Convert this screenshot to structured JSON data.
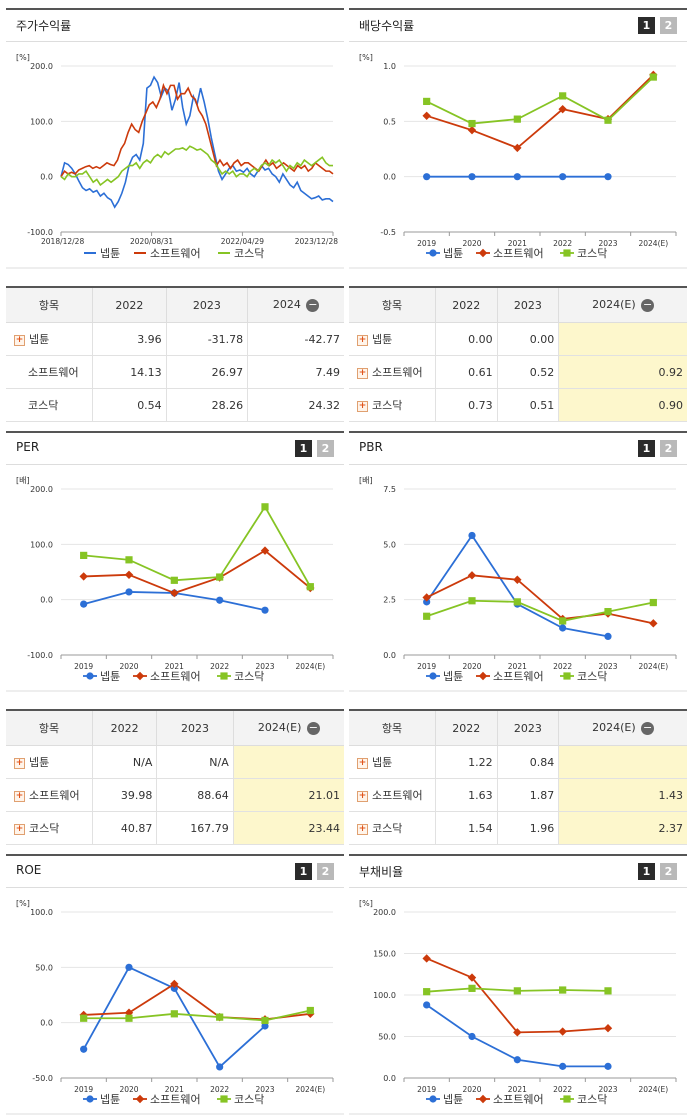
{
  "colors": {
    "nepton": "#2c6fd6",
    "software": "#cc3a0b",
    "kosdaq": "#86c424"
  },
  "panels": {
    "p1": {
      "title": "주가수익률"
    },
    "p2": {
      "title": "배당수익률",
      "pager": [
        "1",
        "2"
      ]
    },
    "p3": {
      "title": "PER",
      "pager": [
        "1",
        "2"
      ]
    },
    "p4": {
      "title": "PBR",
      "pager": [
        "1",
        "2"
      ]
    },
    "p5": {
      "title": "ROE",
      "pager": [
        "1",
        "2"
      ]
    },
    "p6": {
      "title": "부채비율",
      "pager": [
        "1",
        "2"
      ]
    }
  },
  "table_header": {
    "item": "항목"
  },
  "tables": {
    "t1": {
      "cols": [
        "2022",
        "2023",
        "2024"
      ],
      "rows": [
        {
          "name": "넵튠",
          "plus": true,
          "values": [
            "3.96",
            "-31.78",
            "-42.77"
          ]
        },
        {
          "name": "소프트웨어",
          "plus": false,
          "values": [
            "14.13",
            "26.97",
            "7.49"
          ]
        },
        {
          "name": "코스닥",
          "plus": false,
          "values": [
            "0.54",
            "28.26",
            "24.32"
          ]
        }
      ]
    },
    "t2": {
      "cols": [
        "2022",
        "2023",
        "2024(E)"
      ],
      "rows": [
        {
          "name": "넵튠",
          "plus": true,
          "values": [
            "0.00",
            "0.00",
            ""
          ]
        },
        {
          "name": "소프트웨어",
          "plus": true,
          "values": [
            "0.61",
            "0.52",
            "0.92"
          ]
        },
        {
          "name": "코스닥",
          "plus": true,
          "values": [
            "0.73",
            "0.51",
            "0.90"
          ]
        }
      ]
    },
    "t3": {
      "cols": [
        "2022",
        "2023",
        "2024(E)"
      ],
      "rows": [
        {
          "name": "넵튠",
          "plus": true,
          "values": [
            "N/A",
            "N/A",
            ""
          ]
        },
        {
          "name": "소프트웨어",
          "plus": true,
          "values": [
            "39.98",
            "88.64",
            "21.01"
          ]
        },
        {
          "name": "코스닥",
          "plus": true,
          "values": [
            "40.87",
            "167.79",
            "23.44"
          ]
        }
      ]
    },
    "t4": {
      "cols": [
        "2022",
        "2023",
        "2024(E)"
      ],
      "rows": [
        {
          "name": "넵튠",
          "plus": true,
          "values": [
            "1.22",
            "0.84",
            ""
          ]
        },
        {
          "name": "소프트웨어",
          "plus": true,
          "values": [
            "1.63",
            "1.87",
            "1.43"
          ]
        },
        {
          "name": "코스닥",
          "plus": true,
          "values": [
            "1.54",
            "1.96",
            "2.37"
          ]
        }
      ]
    }
  },
  "chart_data": [
    {
      "id": "c1",
      "type": "line",
      "unit": "[%]",
      "ylim": [
        -100,
        200
      ],
      "yticks": [
        "200.0",
        "100.0",
        "0.0",
        "-100.0"
      ],
      "ytick_values": [
        200,
        100,
        0,
        -100
      ],
      "xticks": [
        "2018/12/28",
        "2020/08/31",
        "2022/04/29",
        "2023/12/28"
      ],
      "xtick_positions": [
        0,
        0.333,
        0.667,
        1.0
      ],
      "legend": [
        "넵튠",
        "소프트웨어",
        "코스닥"
      ],
      "series": [
        {
          "name": "넵튠",
          "color": "#2c6fd6",
          "values": [
            0,
            25,
            22,
            15,
            5,
            -8,
            -20,
            -25,
            -22,
            -28,
            -25,
            -35,
            -30,
            -38,
            -42,
            -55,
            -45,
            -30,
            -10,
            20,
            35,
            40,
            30,
            60,
            160,
            165,
            180,
            170,
            145,
            160,
            155,
            120,
            140,
            170,
            125,
            95,
            110,
            145,
            130,
            160,
            135,
            105,
            70,
            40,
            10,
            -5,
            5,
            15,
            20,
            10,
            12,
            8,
            15,
            5,
            0,
            10,
            20,
            12,
            15,
            5,
            0,
            -10,
            5,
            -5,
            -15,
            -20,
            -10,
            -25,
            -30,
            -35,
            -40,
            -38,
            -35,
            -42,
            -40,
            -40,
            -45
          ]
        },
        {
          "name": "소프트웨어",
          "color": "#cc3a0b",
          "values": [
            0,
            10,
            5,
            8,
            5,
            12,
            15,
            18,
            20,
            15,
            18,
            15,
            20,
            25,
            22,
            20,
            30,
            50,
            60,
            80,
            95,
            85,
            80,
            100,
            115,
            130,
            135,
            125,
            140,
            165,
            150,
            165,
            165,
            140,
            150,
            150,
            160,
            145,
            140,
            120,
            110,
            95,
            70,
            45,
            20,
            30,
            20,
            25,
            15,
            25,
            30,
            20,
            25,
            25,
            20,
            15,
            10,
            20,
            30,
            20,
            25,
            15,
            20,
            25,
            20,
            15,
            10,
            20,
            15,
            20,
            10,
            15,
            25,
            20,
            15,
            10,
            10,
            5
          ]
        },
        {
          "name": "코스닥",
          "color": "#86c424",
          "values": [
            0,
            -5,
            5,
            0,
            0,
            5,
            5,
            10,
            0,
            -10,
            -5,
            -15,
            -10,
            -5,
            -10,
            -5,
            0,
            10,
            15,
            20,
            20,
            25,
            15,
            25,
            30,
            25,
            35,
            40,
            35,
            45,
            40,
            45,
            50,
            50,
            52,
            48,
            55,
            52,
            48,
            50,
            45,
            40,
            30,
            25,
            15,
            5,
            10,
            5,
            10,
            0,
            5,
            5,
            0,
            10,
            15,
            10,
            20,
            25,
            20,
            30,
            25,
            30,
            20,
            10,
            20,
            15,
            25,
            20,
            30,
            25,
            20,
            25,
            30,
            35,
            25,
            20,
            20
          ]
        }
      ]
    },
    {
      "id": "c2",
      "type": "line",
      "unit": "[%]",
      "ylim": [
        -0.5,
        1.0
      ],
      "yticks": [
        "1.0",
        "0.5",
        "0.0",
        "-0.5"
      ],
      "ytick_values": [
        1.0,
        0.5,
        0.0,
        -0.5
      ],
      "categories": [
        "2019",
        "2020",
        "2021",
        "2022",
        "2023",
        "2024(E)"
      ],
      "legend": [
        "넵튠",
        "소프트웨어",
        "코스닥"
      ],
      "series": [
        {
          "name": "넵튠",
          "color": "#2c6fd6",
          "marker": "circle",
          "values": [
            0.0,
            0.0,
            0.0,
            0.0,
            0.0,
            null
          ]
        },
        {
          "name": "소프트웨어",
          "color": "#cc3a0b",
          "marker": "diamond",
          "values": [
            0.55,
            0.42,
            0.26,
            0.61,
            0.52,
            0.92
          ]
        },
        {
          "name": "코스닥",
          "color": "#86c424",
          "marker": "square",
          "values": [
            0.68,
            0.48,
            0.52,
            0.73,
            0.51,
            0.9
          ]
        }
      ]
    },
    {
      "id": "c3",
      "type": "line",
      "unit": "[배]",
      "ylim": [
        -100,
        200
      ],
      "yticks": [
        "200.0",
        "100.0",
        "0.0",
        "-100.0"
      ],
      "ytick_values": [
        200,
        100,
        0,
        -100
      ],
      "categories": [
        "2019",
        "2020",
        "2021",
        "2022",
        "2023",
        "2024(E)"
      ],
      "legend": [
        "넵튠",
        "소프트웨어",
        "코스닥"
      ],
      "series": [
        {
          "name": "넵튠",
          "color": "#2c6fd6",
          "marker": "circle",
          "values": [
            -8,
            14,
            12,
            -1,
            -19,
            null
          ]
        },
        {
          "name": "소프트웨어",
          "color": "#cc3a0b",
          "marker": "diamond",
          "values": [
            42,
            45,
            12,
            39.98,
            88.64,
            21.01
          ]
        },
        {
          "name": "코스닥",
          "color": "#86c424",
          "marker": "square",
          "values": [
            80,
            72,
            35,
            40.87,
            167.79,
            23.44
          ]
        }
      ]
    },
    {
      "id": "c4",
      "type": "line",
      "unit": "[배]",
      "ylim": [
        0,
        7.5
      ],
      "yticks": [
        "7.5",
        "5.0",
        "2.5",
        "0.0"
      ],
      "ytick_values": [
        7.5,
        5.0,
        2.5,
        0.0
      ],
      "categories": [
        "2019",
        "2020",
        "2021",
        "2022",
        "2023",
        "2024(E)"
      ],
      "legend": [
        "넵튠",
        "소프트웨어",
        "코스닥"
      ],
      "series": [
        {
          "name": "넵튠",
          "color": "#2c6fd6",
          "marker": "circle",
          "values": [
            2.4,
            5.4,
            2.3,
            1.22,
            0.84,
            null
          ]
        },
        {
          "name": "소프트웨어",
          "color": "#cc3a0b",
          "marker": "diamond",
          "values": [
            2.6,
            3.6,
            3.4,
            1.63,
            1.87,
            1.43
          ]
        },
        {
          "name": "코스닥",
          "color": "#86c424",
          "marker": "square",
          "values": [
            1.75,
            2.45,
            2.4,
            1.54,
            1.96,
            2.37
          ]
        }
      ]
    },
    {
      "id": "c5",
      "type": "line",
      "unit": "[%]",
      "ylim": [
        -50,
        100
      ],
      "yticks": [
        "100.0",
        "50.0",
        "0.0",
        "-50.0"
      ],
      "ytick_values": [
        100,
        50,
        0,
        -50
      ],
      "categories": [
        "2019",
        "2020",
        "2021",
        "2022",
        "2023",
        "2024(E)"
      ],
      "legend": [
        "넵튠",
        "소프트웨어",
        "코스닥"
      ],
      "series": [
        {
          "name": "넵튠",
          "color": "#2c6fd6",
          "marker": "circle",
          "values": [
            -24,
            50,
            31,
            -40,
            -3,
            null
          ]
        },
        {
          "name": "소프트웨어",
          "color": "#cc3a0b",
          "marker": "diamond",
          "values": [
            7,
            9,
            35,
            5,
            3,
            8
          ]
        },
        {
          "name": "코스닥",
          "color": "#86c424",
          "marker": "square",
          "values": [
            4,
            4,
            8,
            5,
            2,
            11
          ]
        }
      ]
    },
    {
      "id": "c6",
      "type": "line",
      "unit": "[%]",
      "ylim": [
        0,
        200
      ],
      "yticks": [
        "200.0",
        "150.0",
        "100.0",
        "50.0",
        "0.0"
      ],
      "ytick_values": [
        200,
        150,
        100,
        50,
        0
      ],
      "categories": [
        "2019",
        "2020",
        "2021",
        "2022",
        "2023",
        "2024(E)"
      ],
      "legend": [
        "넵튠",
        "소프트웨어",
        "코스닥"
      ],
      "series": [
        {
          "name": "넵튠",
          "color": "#2c6fd6",
          "marker": "circle",
          "values": [
            88,
            50,
            22,
            14,
            14,
            null
          ]
        },
        {
          "name": "소프트웨어",
          "color": "#cc3a0b",
          "marker": "diamond",
          "values": [
            144,
            121,
            55,
            56,
            60,
            null
          ]
        },
        {
          "name": "코스닥",
          "color": "#86c424",
          "marker": "square",
          "values": [
            104,
            108,
            105,
            106,
            105,
            null
          ]
        }
      ]
    }
  ]
}
